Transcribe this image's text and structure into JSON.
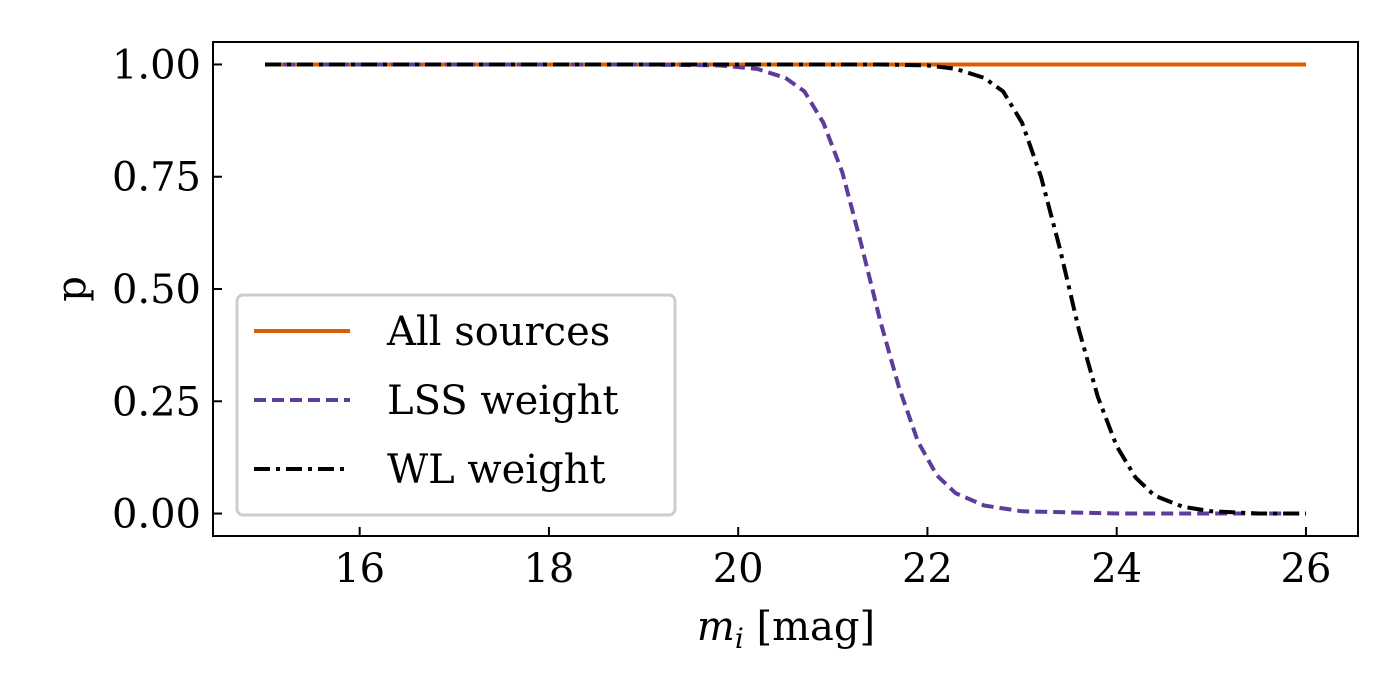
{
  "chart_data": {
    "type": "line",
    "title": "",
    "xlabel_var": "m",
    "xlabel_sub": "i",
    "xlabel_unit": " [mag]",
    "ylabel": "p",
    "xlim": [
      14.45,
      26.55
    ],
    "ylim": [
      -0.05,
      1.05
    ],
    "xticks": [
      16,
      18,
      20,
      22,
      24,
      26
    ],
    "xtick_labels": [
      "16",
      "18",
      "20",
      "22",
      "24",
      "26"
    ],
    "yticks": [
      0.0,
      0.25,
      0.5,
      0.75,
      1.0
    ],
    "ytick_labels": [
      "0.00",
      "0.25",
      "0.50",
      "0.75",
      "1.00"
    ],
    "legend_position": "lower-left",
    "series": [
      {
        "name": "All sources",
        "color": "#d95f02",
        "style": "solid",
        "x": [
          15,
          16,
          17,
          18,
          19,
          20,
          21,
          22,
          23,
          24,
          25,
          26
        ],
        "y": [
          1,
          1,
          1,
          1,
          1,
          1,
          1,
          1,
          1,
          1,
          1,
          1
        ]
      },
      {
        "name": "LSS weight",
        "color": "#5e3c99",
        "style": "dashed",
        "x": [
          15,
          17,
          19,
          19.8,
          20.2,
          20.5,
          20.7,
          20.9,
          21.1,
          21.3,
          21.5,
          21.7,
          21.9,
          22.1,
          22.3,
          22.6,
          23,
          24,
          25,
          26
        ],
        "y": [
          1,
          1,
          1,
          0.998,
          0.99,
          0.97,
          0.94,
          0.87,
          0.76,
          0.6,
          0.43,
          0.28,
          0.16,
          0.085,
          0.045,
          0.018,
          0.005,
          0,
          0,
          0
        ]
      },
      {
        "name": "WL weight",
        "color": "#000000",
        "style": "dashdot",
        "x": [
          15,
          18,
          20,
          21,
          21.5,
          22,
          22.3,
          22.6,
          22.8,
          23,
          23.2,
          23.4,
          23.6,
          23.8,
          24,
          24.2,
          24.4,
          24.7,
          25,
          25.5,
          26
        ],
        "y": [
          1,
          1,
          1,
          1,
          1,
          0.998,
          0.99,
          0.97,
          0.94,
          0.87,
          0.75,
          0.59,
          0.41,
          0.26,
          0.15,
          0.08,
          0.04,
          0.015,
          0.005,
          0,
          0
        ]
      }
    ]
  }
}
